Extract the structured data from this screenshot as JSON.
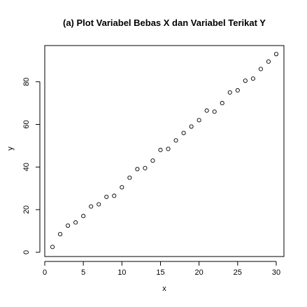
{
  "chart_data": {
    "type": "scatter",
    "title": "(a) Plot Variabel Bebas X dan Variabel Terikat Y",
    "xlabel": "x",
    "ylabel": "y",
    "xlim": [
      0,
      31
    ],
    "ylim": [
      -2,
      97
    ],
    "x_ticks": [
      0,
      5,
      10,
      15,
      20,
      25,
      30
    ],
    "y_ticks": [
      0,
      20,
      40,
      60,
      80
    ],
    "grid": false,
    "legend": "none",
    "marker": "open-circle",
    "x": [
      1,
      2,
      3,
      4,
      5,
      6,
      7,
      8,
      9,
      10,
      11,
      12,
      13,
      14,
      15,
      16,
      17,
      18,
      19,
      20,
      21,
      22,
      23,
      24,
      25,
      26,
      27,
      28,
      29,
      30
    ],
    "y": [
      2.5,
      8.5,
      12.5,
      14,
      17,
      21.5,
      22.5,
      26,
      26.5,
      30.5,
      35,
      39,
      39.5,
      43,
      48,
      48.5,
      52.5,
      56,
      59,
      62,
      66.5,
      66,
      70,
      75,
      76,
      80.5,
      81.5,
      86,
      89.5,
      93
    ]
  },
  "colors": {
    "marker_stroke": "#000000",
    "axis": "#000000",
    "text": "#000000",
    "background": "#ffffff"
  }
}
